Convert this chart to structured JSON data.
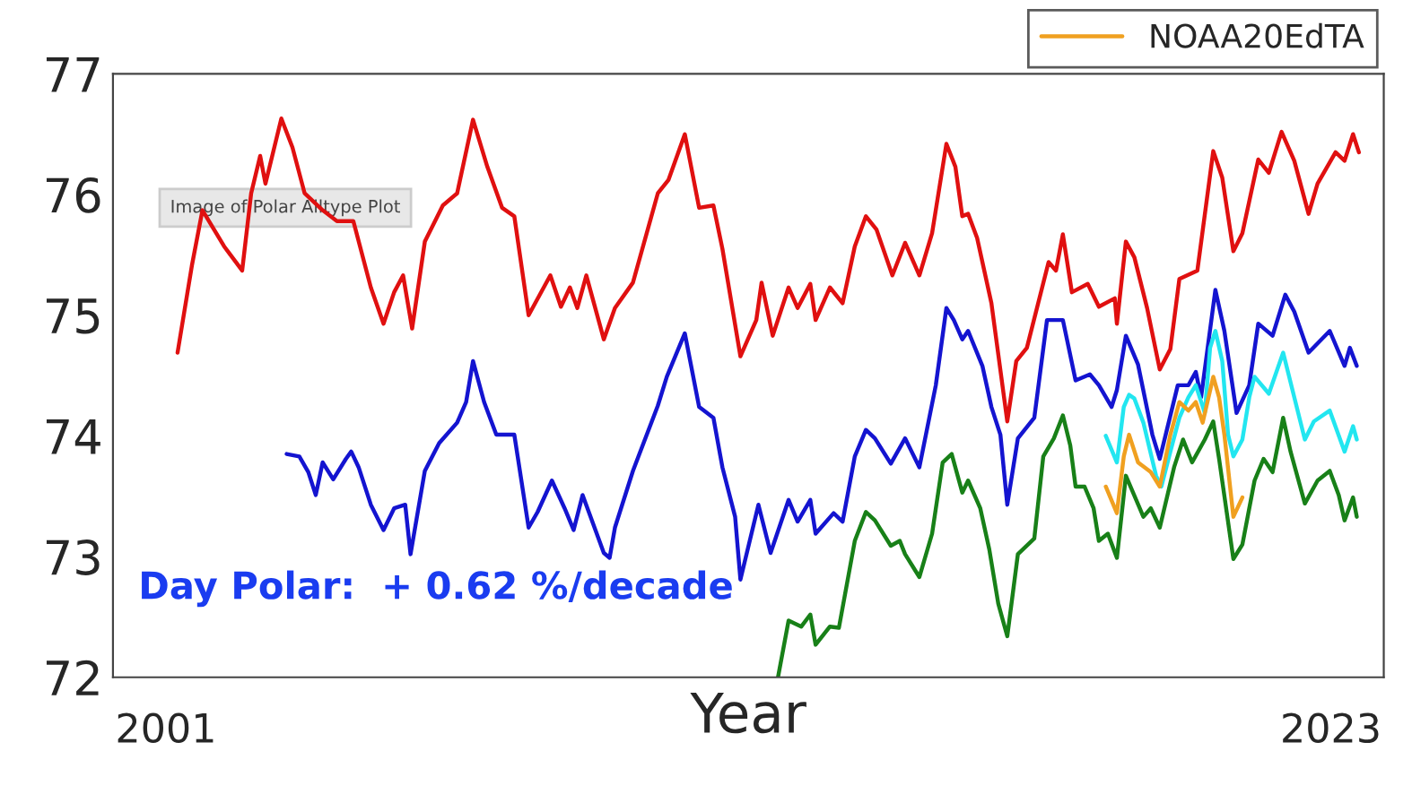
{
  "chart_data": {
    "type": "line",
    "xlabel": "Year",
    "xlim": [
      2000,
      2024
    ],
    "xticks": [
      2001,
      2023
    ],
    "ylim": [
      72,
      77
    ],
    "yticks": [
      72,
      73,
      74,
      75,
      76,
      77
    ],
    "grid": false,
    "legend": "top right",
    "marker": "none",
    "line_style": "solid",
    "annotations": [
      "Day Polar:  + 0.62 %/decade",
      "Image of Polar Alltype Plot"
    ],
    "series": [
      {
        "color": "#e01010",
        "x": [
          2001.22,
          2001.49,
          2001.69,
          2002.1,
          2002.44,
          2002.61,
          2002.78,
          2002.88,
          2003.18,
          2003.39,
          2003.62,
          2003.96,
          2004.23,
          2004.54,
          2004.87,
          2005.11,
          2005.31,
          2005.48,
          2005.65,
          2005.89,
          2006.23,
          2006.5,
          2006.8,
          2007.07,
          2007.35,
          2007.58,
          2007.85,
          2008.26,
          2008.46,
          2008.63,
          2008.77,
          2008.94,
          2009.27,
          2009.48,
          2009.82,
          2010.29,
          2010.49,
          2010.8,
          2011.07,
          2011.34,
          2011.51,
          2011.85,
          2012.15,
          2012.25,
          2012.46,
          2012.76,
          2012.93,
          2013.17,
          2013.27,
          2013.54,
          2013.78,
          2014.01,
          2014.22,
          2014.42,
          2014.72,
          2014.96,
          2015.23,
          2015.47,
          2015.74,
          2015.91,
          2016.04,
          2016.15,
          2016.32,
          2016.59,
          2016.89,
          2017.06,
          2017.26,
          2017.67,
          2017.81,
          2017.94,
          2018.11,
          2018.41,
          2018.62,
          2018.92,
          2018.96,
          2019.13,
          2019.29,
          2019.53,
          2019.77,
          2019.97,
          2020.14,
          2020.48,
          2020.78,
          2020.95,
          2021.16,
          2021.33,
          2021.63,
          2021.83,
          2022.07,
          2022.31,
          2022.58,
          2022.75,
          2023.09,
          2023.26,
          2023.42,
          2023.53
        ],
        "values": [
          74.69,
          75.41,
          75.87,
          75.57,
          75.37,
          76.01,
          76.32,
          76.09,
          76.63,
          76.39,
          76.01,
          75.87,
          75.78,
          75.78,
          75.23,
          74.93,
          75.19,
          75.33,
          74.89,
          75.61,
          75.91,
          76.01,
          76.62,
          76.23,
          75.89,
          75.82,
          75.0,
          75.33,
          75.07,
          75.23,
          75.06,
          75.33,
          74.8,
          75.06,
          75.27,
          76.01,
          76.12,
          76.5,
          75.89,
          75.91,
          75.55,
          74.66,
          74.96,
          75.27,
          74.83,
          75.23,
          75.06,
          75.26,
          74.96,
          75.23,
          75.1,
          75.57,
          75.82,
          75.71,
          75.33,
          75.6,
          75.33,
          75.68,
          76.42,
          76.23,
          75.82,
          75.84,
          75.64,
          75.1,
          74.12,
          74.62,
          74.73,
          75.44,
          75.37,
          75.67,
          75.19,
          75.26,
          75.07,
          75.14,
          74.93,
          75.61,
          75.48,
          75.06,
          74.55,
          74.72,
          75.3,
          75.37,
          76.36,
          76.14,
          75.53,
          75.68,
          76.29,
          76.18,
          76.52,
          76.28,
          75.84,
          76.09,
          76.35,
          76.28,
          76.5,
          76.35
        ]
      },
      {
        "color": "#1414d0",
        "x": [
          2003.28,
          2003.52,
          2003.69,
          2003.83,
          2003.96,
          2004.16,
          2004.4,
          2004.5,
          2004.64,
          2004.87,
          2005.11,
          2005.31,
          2005.52,
          2005.62,
          2005.89,
          2006.16,
          2006.5,
          2006.67,
          2006.8,
          2007.01,
          2007.24,
          2007.58,
          2007.85,
          2008.02,
          2008.29,
          2008.53,
          2008.7,
          2008.87,
          2009.27,
          2009.38,
          2009.48,
          2009.82,
          2010.29,
          2010.46,
          2010.8,
          2011.07,
          2011.34,
          2011.51,
          2011.75,
          2011.85,
          2012.19,
          2012.42,
          2012.76,
          2012.93,
          2013.17,
          2013.27,
          2013.61,
          2013.78,
          2014.01,
          2014.22,
          2014.39,
          2014.69,
          2014.96,
          2015.23,
          2015.54,
          2015.74,
          2015.88,
          2016.04,
          2016.15,
          2016.42,
          2016.59,
          2016.76,
          2016.89,
          2017.09,
          2017.4,
          2017.64,
          2017.94,
          2018.18,
          2018.45,
          2018.62,
          2018.86,
          2018.96,
          2019.13,
          2019.36,
          2019.63,
          2019.77,
          2020.11,
          2020.31,
          2020.45,
          2020.55,
          2020.82,
          2020.99,
          2021.22,
          2021.46,
          2021.63,
          2021.9,
          2022.14,
          2022.31,
          2022.58,
          2022.98,
          2023.26,
          2023.36,
          2023.49
        ],
        "values": [
          73.85,
          73.83,
          73.7,
          73.51,
          73.78,
          73.64,
          73.81,
          73.87,
          73.74,
          73.43,
          73.22,
          73.4,
          73.43,
          73.02,
          73.71,
          73.94,
          74.11,
          74.28,
          74.62,
          74.28,
          74.01,
          74.01,
          73.24,
          73.37,
          73.63,
          73.4,
          73.22,
          73.51,
          73.03,
          72.99,
          73.24,
          73.71,
          74.25,
          74.49,
          74.85,
          74.24,
          74.15,
          73.74,
          73.33,
          72.81,
          73.43,
          73.03,
          73.47,
          73.29,
          73.47,
          73.19,
          73.36,
          73.29,
          73.83,
          74.05,
          73.98,
          73.77,
          73.98,
          73.74,
          74.42,
          75.06,
          74.96,
          74.8,
          74.87,
          74.58,
          74.24,
          74.01,
          73.43,
          73.98,
          74.15,
          74.96,
          74.96,
          74.46,
          74.51,
          74.42,
          74.24,
          74.38,
          74.83,
          74.59,
          74.01,
          73.81,
          74.42,
          74.42,
          74.53,
          74.32,
          75.21,
          74.87,
          74.19,
          74.42,
          74.93,
          74.83,
          75.17,
          75.03,
          74.69,
          74.87,
          74.58,
          74.73,
          74.58
        ]
      },
      {
        "color": "#188018",
        "x": [
          2012.56,
          2012.76,
          2013.0,
          2013.17,
          2013.27,
          2013.54,
          2013.71,
          2014.01,
          2014.22,
          2014.39,
          2014.69,
          2014.86,
          2014.96,
          2015.23,
          2015.47,
          2015.67,
          2015.84,
          2016.04,
          2016.15,
          2016.38,
          2016.55,
          2016.72,
          2016.89,
          2017.09,
          2017.4,
          2017.57,
          2017.77,
          2017.94,
          2018.08,
          2018.18,
          2018.35,
          2018.52,
          2018.62,
          2018.79,
          2018.96,
          2019.13,
          2019.46,
          2019.6,
          2019.77,
          2020.04,
          2020.21,
          2020.38,
          2020.62,
          2020.78,
          2020.89,
          2021.16,
          2021.33,
          2021.56,
          2021.73,
          2021.9,
          2022.1,
          2022.24,
          2022.51,
          2022.75,
          2022.98,
          2023.15,
          2023.26,
          2023.42,
          2023.49
        ],
        "values": [
          72.0,
          72.47,
          72.42,
          72.52,
          72.27,
          72.42,
          72.41,
          73.13,
          73.37,
          73.3,
          73.09,
          73.13,
          73.02,
          72.83,
          73.19,
          73.78,
          73.85,
          73.53,
          73.63,
          73.4,
          73.06,
          72.61,
          72.34,
          73.02,
          73.15,
          73.83,
          73.98,
          74.17,
          73.92,
          73.58,
          73.58,
          73.4,
          73.13,
          73.19,
          72.99,
          73.67,
          73.33,
          73.4,
          73.24,
          73.74,
          73.97,
          73.78,
          73.97,
          74.12,
          73.81,
          72.98,
          73.1,
          73.63,
          73.81,
          73.7,
          74.15,
          73.87,
          73.44,
          73.63,
          73.71,
          73.51,
          73.3,
          73.49,
          73.33
        ]
      },
      {
        "color": "#22e6f0",
        "x": [
          2018.75,
          2018.96,
          2019.09,
          2019.19,
          2019.29,
          2019.46,
          2019.7,
          2019.8,
          2019.97,
          2020.14,
          2020.31,
          2020.45,
          2020.62,
          2020.72,
          2020.82,
          2020.95,
          2021.06,
          2021.16,
          2021.33,
          2021.46,
          2021.56,
          2021.83,
          2022.1,
          2022.31,
          2022.51,
          2022.68,
          2022.98,
          2023.26,
          2023.42,
          2023.49
        ],
        "values": [
          74.0,
          73.78,
          74.24,
          74.34,
          74.31,
          74.11,
          73.67,
          73.58,
          73.87,
          74.15,
          74.32,
          74.42,
          74.19,
          74.73,
          74.87,
          74.62,
          74.01,
          73.83,
          73.97,
          74.32,
          74.49,
          74.35,
          74.69,
          74.32,
          73.97,
          74.12,
          74.21,
          73.87,
          74.08,
          73.97
        ]
      },
      {
        "name": "NOAA20EdTA",
        "color": "#f0a020",
        "x": [
          2018.75,
          2018.96,
          2019.09,
          2019.19,
          2019.36,
          2019.6,
          2019.77,
          2019.97,
          2020.14,
          2020.31,
          2020.45,
          2020.58,
          2020.78,
          2020.89,
          2020.99,
          2021.16,
          2021.33
        ],
        "values": [
          73.58,
          73.36,
          73.83,
          74.01,
          73.78,
          73.7,
          73.58,
          74.01,
          74.28,
          74.21,
          74.28,
          74.11,
          74.49,
          74.32,
          74.01,
          73.33,
          73.49
        ]
      }
    ]
  }
}
